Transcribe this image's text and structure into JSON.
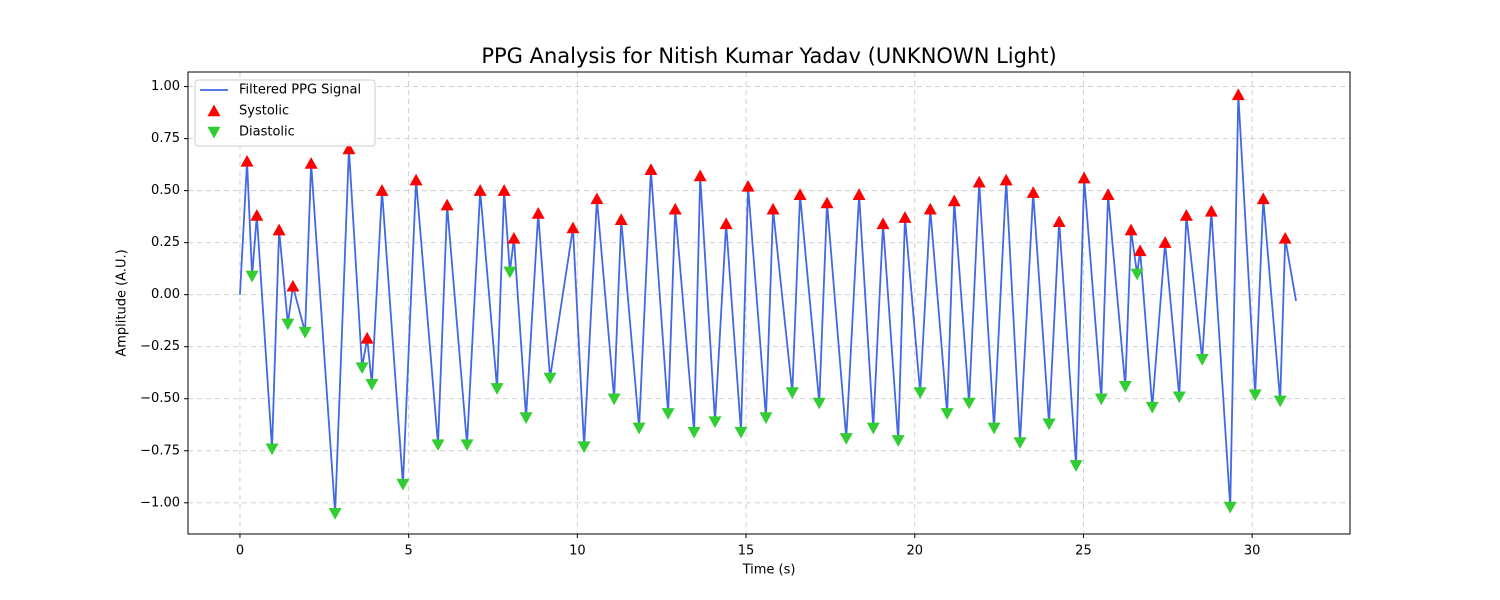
{
  "chart_data": {
    "type": "line",
    "title": "PPG Analysis for Nitish Kumar Yadav (UNKNOWN Light)",
    "xlabel": "Time (s)",
    "ylabel": "Amplitude (A.U.)",
    "xlim": [
      -1.54,
      32.9
    ],
    "ylim": [
      -1.15,
      1.07
    ],
    "xticks": [
      0,
      5,
      10,
      15,
      20,
      25,
      30
    ],
    "yticks": [
      {
        "value": -1,
        "label": "−1.00"
      },
      {
        "value": -0.75,
        "label": "−0.75"
      },
      {
        "value": -0.5,
        "label": "−0.50"
      },
      {
        "value": -0.25,
        "label": "−0.25"
      },
      {
        "value": 0,
        "label": "0.00"
      },
      {
        "value": 0.25,
        "label": "0.25"
      },
      {
        "value": 0.5,
        "label": "0.50"
      },
      {
        "value": 0.75,
        "label": "0.75"
      },
      {
        "value": 1,
        "label": "1.00"
      }
    ],
    "grid": true,
    "legend": "upper left",
    "series": [
      {
        "name": "Filtered PPG Signal",
        "color": "#4169e1",
        "marker": "line",
        "x": [
          0,
          0.21,
          0.36,
          0.5,
          0.95,
          1.16,
          1.42,
          1.57,
          1.93,
          2.11,
          2.82,
          3.23,
          3.62,
          3.77,
          3.91,
          4.21,
          4.83,
          5.22,
          5.87,
          6.14,
          6.73,
          7.12,
          7.62,
          7.83,
          8.0,
          8.12,
          8.48,
          8.84,
          9.19,
          9.87,
          10.2,
          10.58,
          11.09,
          11.3,
          11.83,
          12.18,
          12.69,
          12.9,
          13.46,
          13.64,
          14.08,
          14.41,
          14.85,
          15.06,
          15.59,
          15.8,
          16.37,
          16.6,
          17.17,
          17.4,
          17.97,
          18.35,
          18.77,
          19.06,
          19.51,
          19.71,
          20.16,
          20.46,
          20.96,
          21.17,
          21.61,
          21.91,
          22.35,
          22.71,
          23.12,
          23.51,
          23.98,
          24.28,
          24.78,
          25.02,
          25.53,
          25.73,
          26.24,
          26.41,
          26.59,
          26.68,
          27.04,
          27.42,
          27.84,
          28.05,
          28.52,
          28.79,
          29.35,
          29.59,
          30.09,
          30.33,
          30.83,
          30.98,
          31.3
        ],
        "values": [
          0,
          0.64,
          0.09,
          0.38,
          -0.74,
          0.31,
          -0.14,
          0.04,
          -0.18,
          0.63,
          -1.05,
          0.7,
          -0.35,
          -0.21,
          -0.43,
          0.5,
          -0.91,
          0.55,
          -0.72,
          0.43,
          -0.72,
          0.5,
          -0.45,
          0.5,
          0.11,
          0.27,
          -0.59,
          0.39,
          -0.4,
          0.32,
          -0.73,
          0.46,
          -0.5,
          0.36,
          -0.64,
          0.6,
          -0.57,
          0.41,
          -0.66,
          0.57,
          -0.61,
          0.34,
          -0.66,
          0.52,
          -0.59,
          0.41,
          -0.47,
          0.48,
          -0.52,
          0.44,
          -0.69,
          0.48,
          -0.64,
          0.34,
          -0.7,
          0.37,
          -0.47,
          0.41,
          -0.57,
          0.45,
          -0.52,
          0.54,
          -0.64,
          0.55,
          -0.71,
          0.49,
          -0.62,
          0.35,
          -0.82,
          0.56,
          -0.5,
          0.48,
          -0.44,
          0.31,
          0.1,
          0.21,
          -0.54,
          0.25,
          -0.49,
          0.38,
          -0.31,
          0.4,
          -1.02,
          0.96,
          -0.48,
          0.46,
          -0.51,
          0.27,
          -0.03
        ]
      },
      {
        "name": "Systolic",
        "color": "#ff0000",
        "marker": "up",
        "x": [
          0.21,
          0.5,
          1.16,
          1.57,
          2.11,
          3.23,
          3.77,
          4.21,
          5.22,
          6.14,
          7.12,
          7.83,
          8.12,
          8.84,
          9.87,
          10.58,
          11.3,
          12.18,
          12.9,
          13.64,
          14.41,
          15.06,
          15.8,
          16.6,
          17.4,
          18.35,
          19.06,
          19.71,
          20.46,
          21.17,
          21.91,
          22.71,
          23.51,
          24.28,
          25.02,
          25.73,
          26.41,
          26.68,
          27.42,
          28.05,
          28.79,
          29.59,
          30.33,
          30.98
        ],
        "values": [
          0.64,
          0.38,
          0.31,
          0.04,
          0.63,
          0.7,
          -0.21,
          0.5,
          0.55,
          0.43,
          0.5,
          0.5,
          0.27,
          0.39,
          0.32,
          0.46,
          0.36,
          0.6,
          0.41,
          0.57,
          0.34,
          0.52,
          0.41,
          0.48,
          0.44,
          0.48,
          0.34,
          0.37,
          0.41,
          0.45,
          0.54,
          0.55,
          0.49,
          0.35,
          0.56,
          0.48,
          0.31,
          0.21,
          0.25,
          0.38,
          0.4,
          0.96,
          0.46,
          0.27
        ]
      },
      {
        "name": "Diastolic",
        "color": "#32cd32",
        "marker": "down",
        "x": [
          0.36,
          0.95,
          1.42,
          1.93,
          2.82,
          3.62,
          3.91,
          4.83,
          5.87,
          6.73,
          7.62,
          8.0,
          8.48,
          9.19,
          10.2,
          11.09,
          11.83,
          12.69,
          13.46,
          14.08,
          14.85,
          15.59,
          16.37,
          17.17,
          17.97,
          18.77,
          19.51,
          20.16,
          20.96,
          21.61,
          22.35,
          23.12,
          23.98,
          24.78,
          25.53,
          26.24,
          26.59,
          27.04,
          27.84,
          28.52,
          29.35,
          30.09,
          30.83
        ],
        "values": [
          0.09,
          -0.74,
          -0.14,
          -0.18,
          -1.05,
          -0.35,
          -0.43,
          -0.91,
          -0.72,
          -0.72,
          -0.45,
          0.11,
          -0.59,
          -0.4,
          -0.73,
          -0.5,
          -0.64,
          -0.57,
          -0.66,
          -0.61,
          -0.66,
          -0.59,
          -0.47,
          -0.52,
          -0.69,
          -0.64,
          -0.7,
          -0.47,
          -0.57,
          -0.52,
          -0.64,
          -0.71,
          -0.62,
          -0.82,
          -0.5,
          -0.44,
          0.1,
          -0.54,
          -0.49,
          -0.31,
          -1.02,
          -0.48,
          -0.51
        ]
      }
    ]
  }
}
